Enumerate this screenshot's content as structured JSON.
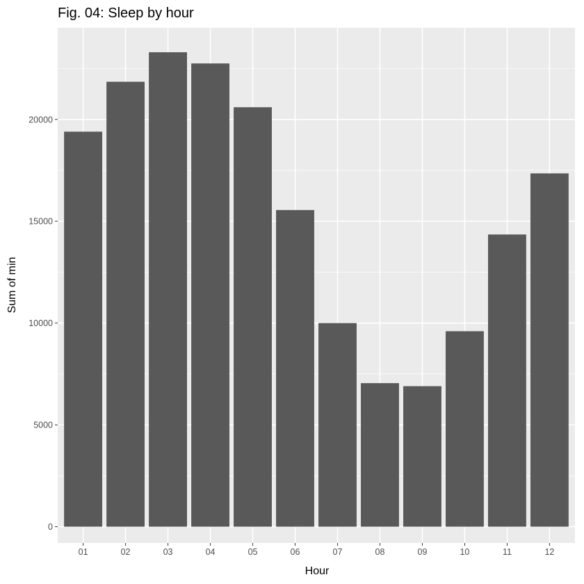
{
  "chart_data": {
    "type": "bar",
    "title": "Fig. 04: Sleep by hour",
    "xlabel": "Hour",
    "ylabel": "Sum of min",
    "categories": [
      "01",
      "02",
      "03",
      "04",
      "05",
      "06",
      "07",
      "08",
      "09",
      "10",
      "11",
      "12"
    ],
    "values": [
      19400,
      21850,
      23300,
      22750,
      20600,
      15550,
      10000,
      7050,
      6900,
      9600,
      14350,
      17350
    ],
    "ylim": [
      -800,
      24500
    ],
    "yticks": [
      0,
      5000,
      10000,
      15000,
      20000
    ],
    "ytick_labels": [
      "0",
      "5000",
      "10000",
      "15000",
      "20000"
    ],
    "grid": true,
    "legend": "none",
    "colors": {
      "panel_background": "#ebebeb",
      "gridline": "#ffffff",
      "bar": "#595959",
      "tick_label": "#4d4d4d"
    }
  }
}
